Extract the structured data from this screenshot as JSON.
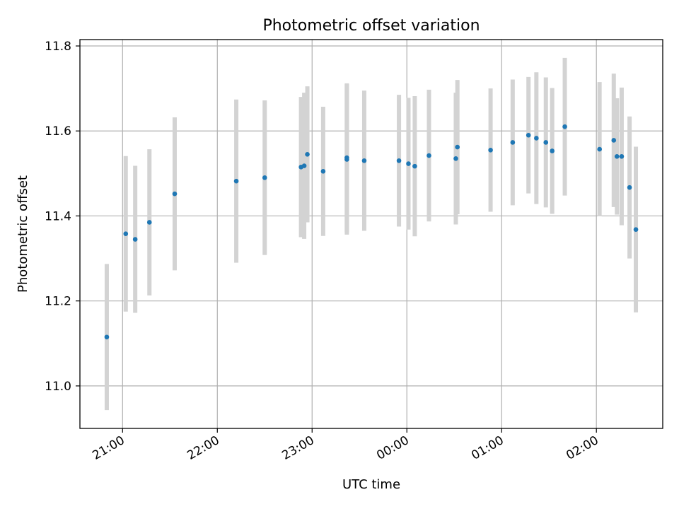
{
  "chart_data": {
    "type": "scatter",
    "title": "Photometric offset variation",
    "xlabel": "UTC time",
    "ylabel": "Photometric offset",
    "x_unit": "time of day (UTC)",
    "xlim": [
      "20:33",
      "26:42"
    ],
    "ylim": [
      10.9,
      11.815
    ],
    "grid": true,
    "error_bars": true,
    "x_ticks": [
      {
        "value": "21:00",
        "label": "21:00"
      },
      {
        "value": "22:00",
        "label": "22:00"
      },
      {
        "value": "23:00",
        "label": "23:00"
      },
      {
        "value": "24:00",
        "label": "00:00"
      },
      {
        "value": "25:00",
        "label": "01:00"
      },
      {
        "value": "26:00",
        "label": "02:00"
      }
    ],
    "y_ticks": [
      11.0,
      11.2,
      11.4,
      11.6,
      11.8
    ],
    "y_tick_labels": [
      "11.0",
      "11.2",
      "11.4",
      "11.6",
      "11.8"
    ],
    "colors": {
      "points": "#1f77b4",
      "error_bars": "#d3d3d3"
    },
    "points": [
      {
        "x": "20:50",
        "y": 11.115,
        "err": 0.172
      },
      {
        "x": "21:02",
        "y": 11.358,
        "err": 0.183
      },
      {
        "x": "21:08",
        "y": 11.345,
        "err": 0.173
      },
      {
        "x": "21:17",
        "y": 11.385,
        "err": 0.172
      },
      {
        "x": "21:33",
        "y": 11.452,
        "err": 0.18
      },
      {
        "x": "22:12",
        "y": 11.482,
        "err": 0.192
      },
      {
        "x": "22:30",
        "y": 11.49,
        "err": 0.182
      },
      {
        "x": "22:53",
        "y": 11.515,
        "err": 0.165
      },
      {
        "x": "22:55",
        "y": 11.518,
        "err": 0.172
      },
      {
        "x": "22:57",
        "y": 11.545,
        "err": 0.16
      },
      {
        "x": "23:07",
        "y": 11.505,
        "err": 0.152
      },
      {
        "x": "23:22",
        "y": 11.533,
        "err": 0.177
      },
      {
        "x": "23:22",
        "y": 11.537,
        "err": 0.175
      },
      {
        "x": "23:33",
        "y": 11.53,
        "err": 0.165
      },
      {
        "x": "23:55",
        "y": 11.53,
        "err": 0.155
      },
      {
        "x": "24:01",
        "y": 11.523,
        "err": 0.155
      },
      {
        "x": "24:05",
        "y": 11.517,
        "err": 0.165
      },
      {
        "x": "24:14",
        "y": 11.542,
        "err": 0.155
      },
      {
        "x": "24:31",
        "y": 11.535,
        "err": 0.155
      },
      {
        "x": "24:32",
        "y": 11.562,
        "err": 0.158
      },
      {
        "x": "24:53",
        "y": 11.555,
        "err": 0.145
      },
      {
        "x": "25:07",
        "y": 11.573,
        "err": 0.148
      },
      {
        "x": "25:17",
        "y": 11.59,
        "err": 0.137
      },
      {
        "x": "25:22",
        "y": 11.583,
        "err": 0.155
      },
      {
        "x": "25:28",
        "y": 11.573,
        "err": 0.153
      },
      {
        "x": "25:32",
        "y": 11.553,
        "err": 0.148
      },
      {
        "x": "25:40",
        "y": 11.61,
        "err": 0.162
      },
      {
        "x": "26:02",
        "y": 11.557,
        "err": 0.158
      },
      {
        "x": "26:11",
        "y": 11.578,
        "err": 0.157
      },
      {
        "x": "26:13",
        "y": 11.54,
        "err": 0.137
      },
      {
        "x": "26:16",
        "y": 11.54,
        "err": 0.162
      },
      {
        "x": "26:21",
        "y": 11.467,
        "err": 0.167
      },
      {
        "x": "26:25",
        "y": 11.368,
        "err": 0.195
      }
    ]
  }
}
